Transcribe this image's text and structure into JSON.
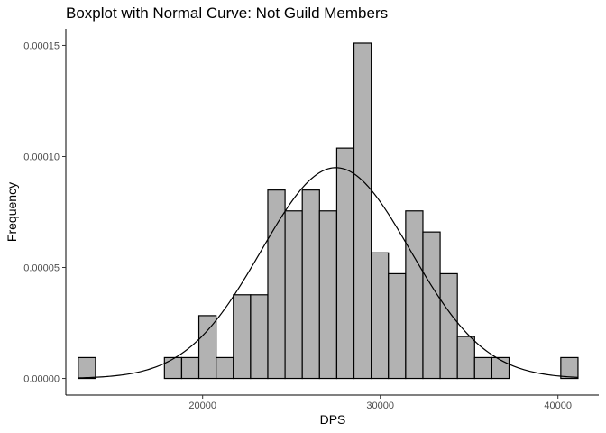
{
  "chart_data": {
    "type": "bar",
    "title": "Boxplot with Normal Curve: Not Guild Members",
    "xlabel": "DPS",
    "ylabel": "Frequency",
    "xlim": [
      12300,
      42300
    ],
    "ylim": [
      -7.5e-06,
      0.0001575
    ],
    "x_ticks": [
      20000,
      30000,
      40000
    ],
    "x_tick_labels": [
      "20000",
      "30000",
      "40000"
    ],
    "y_ticks": [
      0,
      5e-05,
      0.0001,
      0.00015
    ],
    "y_tick_labels": [
      "0.00000",
      "0.00005",
      "0.00010",
      "0.00015"
    ],
    "grid": false,
    "legend": "none",
    "bar_fill": "#b2b2b2",
    "bar_stroke": "#000000",
    "bins": [
      {
        "x0": 13000,
        "x1": 13970,
        "value": 9.4e-06
      },
      {
        "x0": 17850,
        "x1": 18820,
        "value": 9.4e-06
      },
      {
        "x0": 18820,
        "x1": 19790,
        "value": 9.4e-06
      },
      {
        "x0": 19790,
        "x1": 20760,
        "value": 2.83e-05
      },
      {
        "x0": 20760,
        "x1": 21730,
        "value": 9.4e-06
      },
      {
        "x0": 21730,
        "x1": 22700,
        "value": 3.77e-05
      },
      {
        "x0": 22700,
        "x1": 23670,
        "value": 3.77e-05
      },
      {
        "x0": 23670,
        "x1": 24640,
        "value": 8.49e-05
      },
      {
        "x0": 24640,
        "x1": 25610,
        "value": 7.55e-05
      },
      {
        "x0": 25610,
        "x1": 26580,
        "value": 8.49e-05
      },
      {
        "x0": 26580,
        "x1": 27550,
        "value": 7.55e-05
      },
      {
        "x0": 27550,
        "x1": 28520,
        "value": 0.0001038
      },
      {
        "x0": 28520,
        "x1": 29490,
        "value": 0.000151
      },
      {
        "x0": 29490,
        "x1": 30460,
        "value": 5.66e-05
      },
      {
        "x0": 30460,
        "x1": 31430,
        "value": 4.72e-05
      },
      {
        "x0": 31430,
        "x1": 32400,
        "value": 7.55e-05
      },
      {
        "x0": 32400,
        "x1": 33370,
        "value": 6.6e-05
      },
      {
        "x0": 33370,
        "x1": 34340,
        "value": 4.72e-05
      },
      {
        "x0": 34340,
        "x1": 35310,
        "value": 1.89e-05
      },
      {
        "x0": 35310,
        "x1": 36280,
        "value": 9.4e-06
      },
      {
        "x0": 36280,
        "x1": 37250,
        "value": 9.4e-06
      },
      {
        "x0": 40160,
        "x1": 41130,
        "value": 9.4e-06
      }
    ],
    "normal_curve": {
      "mean": 27500,
      "sd": 4200,
      "x_range": [
        13000,
        41130
      ],
      "color": "#000000"
    }
  }
}
